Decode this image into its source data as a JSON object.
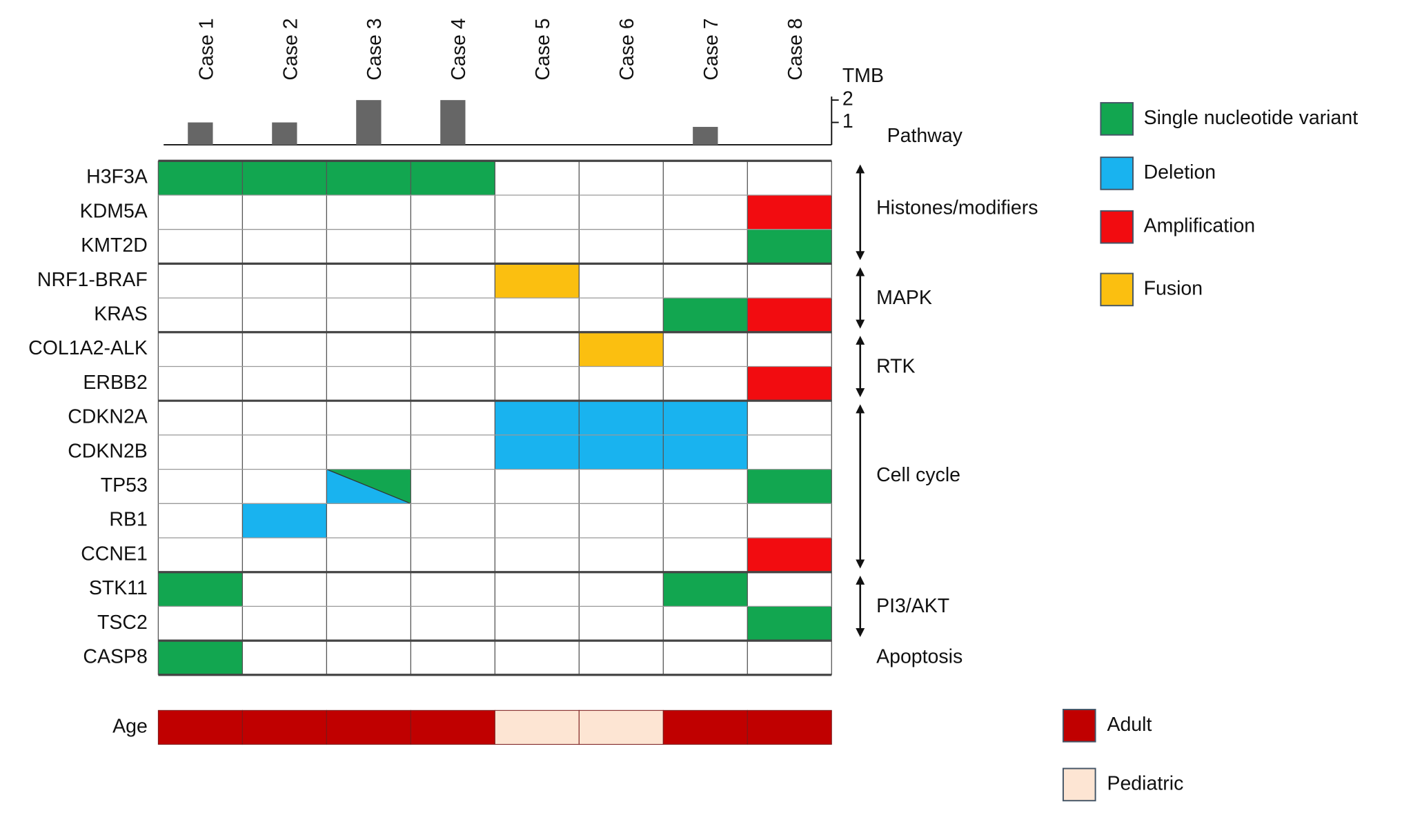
{
  "chart_data": {
    "type": "oncoprint",
    "cases": [
      "Case 1",
      "Case 2",
      "Case 3",
      "Case 4",
      "Case 5",
      "Case 6",
      "Case 7",
      "Case 8"
    ],
    "tmb": {
      "label": "TMB",
      "values": [
        1,
        1,
        2,
        2,
        0,
        0,
        0.8,
        0
      ],
      "ylim": [
        0,
        2
      ],
      "yticks": [
        1,
        2
      ],
      "color": "#666666"
    },
    "pathway_label": "Pathway",
    "genes": [
      "H3F3A",
      "KDM5A",
      "KMT2D",
      "NRF1-BRAF",
      "KRAS",
      "COL1A2-ALK",
      "ERBB2",
      "CDKN2A",
      "CDKN2B",
      "TP53",
      "RB1",
      "CCNE1",
      "STK11",
      "TSC2",
      "CASP8"
    ],
    "alterations": [
      [
        0,
        0,
        0,
        0,
        null,
        null,
        null,
        null
      ],
      [
        null,
        null,
        null,
        null,
        null,
        null,
        null,
        2
      ],
      [
        null,
        null,
        null,
        null,
        null,
        null,
        null,
        0
      ],
      [
        null,
        null,
        null,
        null,
        3,
        null,
        null,
        null
      ],
      [
        null,
        null,
        null,
        null,
        null,
        null,
        0,
        2
      ],
      [
        null,
        null,
        null,
        null,
        null,
        3,
        null,
        null
      ],
      [
        null,
        null,
        null,
        null,
        null,
        null,
        null,
        2
      ],
      [
        null,
        null,
        null,
        null,
        1,
        1,
        1,
        null
      ],
      [
        null,
        null,
        null,
        null,
        1,
        1,
        1,
        null
      ],
      [
        null,
        null,
        [
          1,
          0
        ],
        null,
        null,
        null,
        null,
        0
      ],
      [
        null,
        1,
        null,
        null,
        null,
        null,
        null,
        null
      ],
      [
        null,
        null,
        null,
        null,
        null,
        null,
        null,
        2
      ],
      [
        0,
        null,
        null,
        null,
        null,
        null,
        0,
        null
      ],
      [
        null,
        null,
        null,
        null,
        null,
        null,
        null,
        0
      ],
      [
        0,
        null,
        null,
        null,
        null,
        null,
        null,
        null
      ]
    ],
    "pathways": [
      {
        "label": "Histones/modifiers",
        "span": 3
      },
      {
        "label": "MAPK",
        "span": 2
      },
      {
        "label": "RTK",
        "span": 2
      },
      {
        "label": "Cell cycle",
        "span": 5
      },
      {
        "label": "PI3/AKT",
        "span": 2
      },
      {
        "label": "Apoptosis",
        "span": 1
      }
    ],
    "legend": [
      {
        "label": "Single nucleotide variant",
        "color": "#12a650"
      },
      {
        "label": "Deletion",
        "color": "#19b3ef"
      },
      {
        "label": "Amplification",
        "color": "#f20c10"
      },
      {
        "label": "Fusion",
        "color": "#fbbf10"
      }
    ],
    "age": {
      "label": "Age",
      "values": [
        0,
        0,
        0,
        0,
        1,
        1,
        0,
        0
      ],
      "legend": [
        {
          "label": "Adult",
          "color": "#c00000"
        },
        {
          "label": "Pediatric",
          "color": "#fde5d3"
        }
      ]
    }
  }
}
